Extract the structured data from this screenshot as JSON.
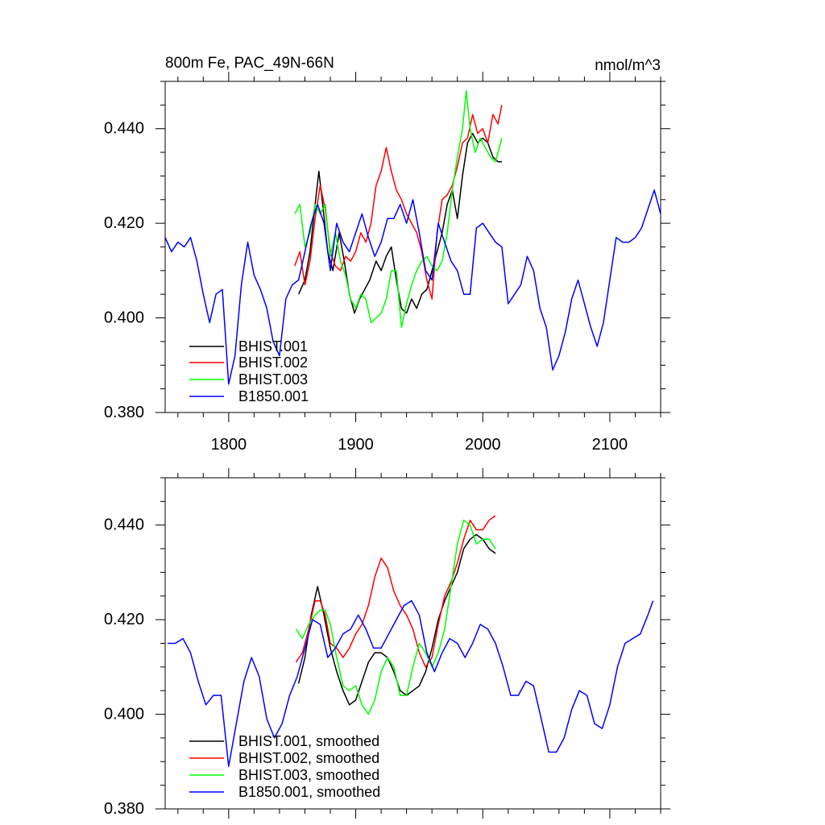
{
  "chart_data": [
    {
      "type": "line",
      "title": "800m Fe, PAC_49N-66N",
      "units": "nmol/m^3",
      "xlim": [
        1750,
        2140
      ],
      "ylim": [
        0.38,
        0.45
      ],
      "xticks": [
        1800,
        1900,
        2000,
        2100
      ],
      "xtick_labels": [
        "1800",
        "1900",
        "2000",
        "2100"
      ],
      "yticks": [
        0.38,
        0.4,
        0.42,
        0.44
      ],
      "ytick_labels": [
        "0.380",
        "0.400",
        "0.420",
        "0.440"
      ],
      "grid": false,
      "legend_position": "bottom-left",
      "series": [
        {
          "name": "BHIST.001",
          "color": "#000000",
          "x": [
            1855,
            1860,
            1864,
            1868,
            1871,
            1874,
            1878,
            1882,
            1887,
            1891,
            1895,
            1899,
            1903,
            1907,
            1911,
            1916,
            1920,
            1924,
            1928,
            1932,
            1936,
            1940,
            1944,
            1948,
            1952,
            1956,
            1960,
            1964,
            1968,
            1972,
            1976,
            1980,
            1984,
            1988,
            1992,
            1996,
            2000,
            2004,
            2008,
            2012,
            2015
          ],
          "y": [
            0.405,
            0.408,
            0.414,
            0.424,
            0.431,
            0.424,
            0.414,
            0.41,
            0.418,
            0.412,
            0.405,
            0.401,
            0.404,
            0.406,
            0.408,
            0.412,
            0.41,
            0.413,
            0.415,
            0.408,
            0.402,
            0.401,
            0.404,
            0.402,
            0.405,
            0.406,
            0.41,
            0.414,
            0.418,
            0.424,
            0.427,
            0.421,
            0.43,
            0.437,
            0.439,
            0.437,
            0.438,
            0.437,
            0.434,
            0.433,
            0.433
          ]
        },
        {
          "name": "BHIST.002",
          "color": "#ff0000",
          "x": [
            1852,
            1856,
            1860,
            1864,
            1868,
            1872,
            1876,
            1880,
            1884,
            1888,
            1892,
            1896,
            1900,
            1904,
            1908,
            1912,
            1916,
            1920,
            1924,
            1928,
            1932,
            1936,
            1940,
            1944,
            1948,
            1952,
            1956,
            1960,
            1964,
            1968,
            1972,
            1976,
            1980,
            1984,
            1988,
            1992,
            1996,
            2000,
            2004,
            2008,
            2012,
            2015
          ],
          "y": [
            0.411,
            0.414,
            0.407,
            0.412,
            0.421,
            0.428,
            0.423,
            0.414,
            0.411,
            0.41,
            0.413,
            0.412,
            0.414,
            0.418,
            0.416,
            0.42,
            0.428,
            0.431,
            0.436,
            0.431,
            0.427,
            0.425,
            0.422,
            0.42,
            0.418,
            0.414,
            0.408,
            0.404,
            0.418,
            0.425,
            0.426,
            0.428,
            0.432,
            0.437,
            0.438,
            0.443,
            0.439,
            0.44,
            0.437,
            0.443,
            0.441,
            0.445
          ]
        },
        {
          "name": "BHIST.003",
          "color": "#00ff00",
          "x": [
            1852,
            1856,
            1860,
            1864,
            1868,
            1872,
            1876,
            1880,
            1884,
            1888,
            1892,
            1896,
            1900,
            1904,
            1908,
            1912,
            1916,
            1920,
            1924,
            1928,
            1932,
            1936,
            1940,
            1944,
            1948,
            1952,
            1956,
            1960,
            1964,
            1968,
            1972,
            1976,
            1980,
            1984,
            1987,
            1990,
            1994,
            1998,
            2002,
            2006,
            2010,
            2015
          ],
          "y": [
            0.422,
            0.424,
            0.415,
            0.418,
            0.424,
            0.422,
            0.424,
            0.413,
            0.418,
            0.412,
            0.409,
            0.404,
            0.402,
            0.405,
            0.404,
            0.399,
            0.4,
            0.401,
            0.404,
            0.41,
            0.41,
            0.398,
            0.403,
            0.407,
            0.41,
            0.412,
            0.413,
            0.411,
            0.41,
            0.412,
            0.418,
            0.427,
            0.434,
            0.44,
            0.448,
            0.44,
            0.435,
            0.438,
            0.436,
            0.434,
            0.433,
            0.438
          ]
        },
        {
          "name": "B1850.001",
          "color": "#0000ff",
          "x": [
            1750,
            1755,
            1760,
            1765,
            1770,
            1775,
            1780,
            1785,
            1790,
            1795,
            1800,
            1805,
            1810,
            1815,
            1820,
            1825,
            1830,
            1835,
            1840,
            1845,
            1850,
            1855,
            1860,
            1865,
            1870,
            1875,
            1880,
            1885,
            1890,
            1895,
            1900,
            1905,
            1910,
            1915,
            1920,
            1925,
            1930,
            1935,
            1940,
            1945,
            1950,
            1955,
            1960,
            1965,
            1970,
            1975,
            1980,
            1985,
            1990,
            1995,
            2000,
            2005,
            2010,
            2015,
            2020,
            2025,
            2030,
            2035,
            2040,
            2045,
            2050,
            2055,
            2060,
            2065,
            2070,
            2075,
            2080,
            2085,
            2090,
            2095,
            2100,
            2105,
            2110,
            2115,
            2120,
            2125,
            2130,
            2135,
            2140
          ],
          "y": [
            0.417,
            0.414,
            0.416,
            0.415,
            0.417,
            0.412,
            0.405,
            0.399,
            0.405,
            0.406,
            0.386,
            0.392,
            0.407,
            0.416,
            0.409,
            0.406,
            0.402,
            0.395,
            0.392,
            0.404,
            0.407,
            0.408,
            0.414,
            0.42,
            0.424,
            0.42,
            0.41,
            0.42,
            0.416,
            0.414,
            0.418,
            0.422,
            0.417,
            0.413,
            0.416,
            0.421,
            0.421,
            0.424,
            0.42,
            0.425,
            0.418,
            0.41,
            0.408,
            0.42,
            0.416,
            0.412,
            0.41,
            0.405,
            0.405,
            0.419,
            0.42,
            0.418,
            0.416,
            0.415,
            0.403,
            0.405,
            0.407,
            0.413,
            0.41,
            0.402,
            0.398,
            0.389,
            0.392,
            0.397,
            0.404,
            0.408,
            0.403,
            0.398,
            0.394,
            0.399,
            0.408,
            0.417,
            0.416,
            0.416,
            0.417,
            0.419,
            0.423,
            0.427,
            0.422
          ]
        }
      ]
    },
    {
      "type": "line",
      "xlim": [
        1750,
        2140
      ],
      "ylim": [
        0.38,
        0.45
      ],
      "xticks": [
        1800,
        1900,
        2000,
        2100
      ],
      "yticks": [
        0.38,
        0.4,
        0.42,
        0.44
      ],
      "ytick_labels": [
        "0.380",
        "0.400",
        "0.420",
        "0.440"
      ],
      "grid": false,
      "legend_position": "bottom-left",
      "series": [
        {
          "name": "BHIST.001, smoothed",
          "color": "#000000",
          "x": [
            1855,
            1860,
            1865,
            1870,
            1875,
            1880,
            1885,
            1890,
            1895,
            1900,
            1905,
            1910,
            1915,
            1920,
            1925,
            1930,
            1935,
            1940,
            1945,
            1950,
            1955,
            1960,
            1965,
            1970,
            1975,
            1980,
            1985,
            1990,
            1995,
            2000,
            2005,
            2010
          ],
          "y": [
            0.4065,
            0.412,
            0.421,
            0.427,
            0.421,
            0.414,
            0.409,
            0.405,
            0.402,
            0.403,
            0.407,
            0.411,
            0.413,
            0.413,
            0.412,
            0.409,
            0.405,
            0.404,
            0.405,
            0.406,
            0.409,
            0.414,
            0.42,
            0.424,
            0.427,
            0.43,
            0.435,
            0.437,
            0.438,
            0.437,
            0.435,
            0.434
          ]
        },
        {
          "name": "BHIST.002, smoothed",
          "color": "#ff0000",
          "x": [
            1853,
            1858,
            1863,
            1868,
            1872,
            1876,
            1880,
            1885,
            1890,
            1895,
            1900,
            1905,
            1910,
            1915,
            1920,
            1925,
            1930,
            1935,
            1940,
            1945,
            1950,
            1955,
            1960,
            1965,
            1970,
            1975,
            1980,
            1985,
            1990,
            1995,
            2000,
            2005,
            2010
          ],
          "y": [
            0.411,
            0.413,
            0.418,
            0.424,
            0.424,
            0.421,
            0.415,
            0.414,
            0.412,
            0.414,
            0.417,
            0.419,
            0.423,
            0.429,
            0.433,
            0.431,
            0.426,
            0.423,
            0.421,
            0.418,
            0.413,
            0.41,
            0.412,
            0.419,
            0.425,
            0.428,
            0.432,
            0.437,
            0.441,
            0.439,
            0.439,
            0.441,
            0.442
          ]
        },
        {
          "name": "BHIST.003, smoothed",
          "color": "#00ff00",
          "x": [
            1853,
            1858,
            1863,
            1868,
            1872,
            1876,
            1880,
            1885,
            1890,
            1895,
            1900,
            1905,
            1910,
            1915,
            1920,
            1925,
            1930,
            1935,
            1940,
            1945,
            1950,
            1955,
            1960,
            1965,
            1970,
            1975,
            1980,
            1985,
            1990,
            1995,
            2000,
            2005,
            2010
          ],
          "y": [
            0.418,
            0.416,
            0.419,
            0.421,
            0.422,
            0.422,
            0.419,
            0.412,
            0.406,
            0.405,
            0.406,
            0.402,
            0.4,
            0.403,
            0.409,
            0.412,
            0.41,
            0.404,
            0.404,
            0.41,
            0.415,
            0.413,
            0.41,
            0.413,
            0.418,
            0.427,
            0.436,
            0.441,
            0.44,
            0.436,
            0.437,
            0.437,
            0.435
          ]
        },
        {
          "name": "B1850.001, smoothed",
          "color": "#0000ff",
          "x": [
            1752,
            1758,
            1764,
            1770,
            1776,
            1782,
            1788,
            1794,
            1800,
            1806,
            1812,
            1818,
            1824,
            1830,
            1836,
            1842,
            1848,
            1854,
            1860,
            1866,
            1872,
            1878,
            1884,
            1890,
            1896,
            1902,
            1908,
            1914,
            1920,
            1926,
            1932,
            1938,
            1944,
            1950,
            1956,
            1962,
            1968,
            1974,
            1980,
            1986,
            1992,
            1998,
            2004,
            2010,
            2016,
            2022,
            2028,
            2034,
            2040,
            2046,
            2052,
            2058,
            2064,
            2070,
            2076,
            2082,
            2088,
            2094,
            2100,
            2106,
            2112,
            2118,
            2124,
            2130,
            2134
          ],
          "y": [
            0.415,
            0.415,
            0.416,
            0.413,
            0.407,
            0.402,
            0.404,
            0.404,
            0.389,
            0.398,
            0.407,
            0.412,
            0.408,
            0.399,
            0.395,
            0.398,
            0.404,
            0.408,
            0.414,
            0.42,
            0.419,
            0.412,
            0.414,
            0.417,
            0.418,
            0.421,
            0.418,
            0.414,
            0.414,
            0.417,
            0.42,
            0.423,
            0.424,
            0.421,
            0.413,
            0.409,
            0.413,
            0.416,
            0.415,
            0.412,
            0.415,
            0.419,
            0.418,
            0.415,
            0.41,
            0.404,
            0.404,
            0.407,
            0.406,
            0.399,
            0.392,
            0.392,
            0.395,
            0.401,
            0.405,
            0.404,
            0.398,
            0.397,
            0.402,
            0.41,
            0.415,
            0.416,
            0.417,
            0.421,
            0.424
          ]
        }
      ]
    }
  ]
}
